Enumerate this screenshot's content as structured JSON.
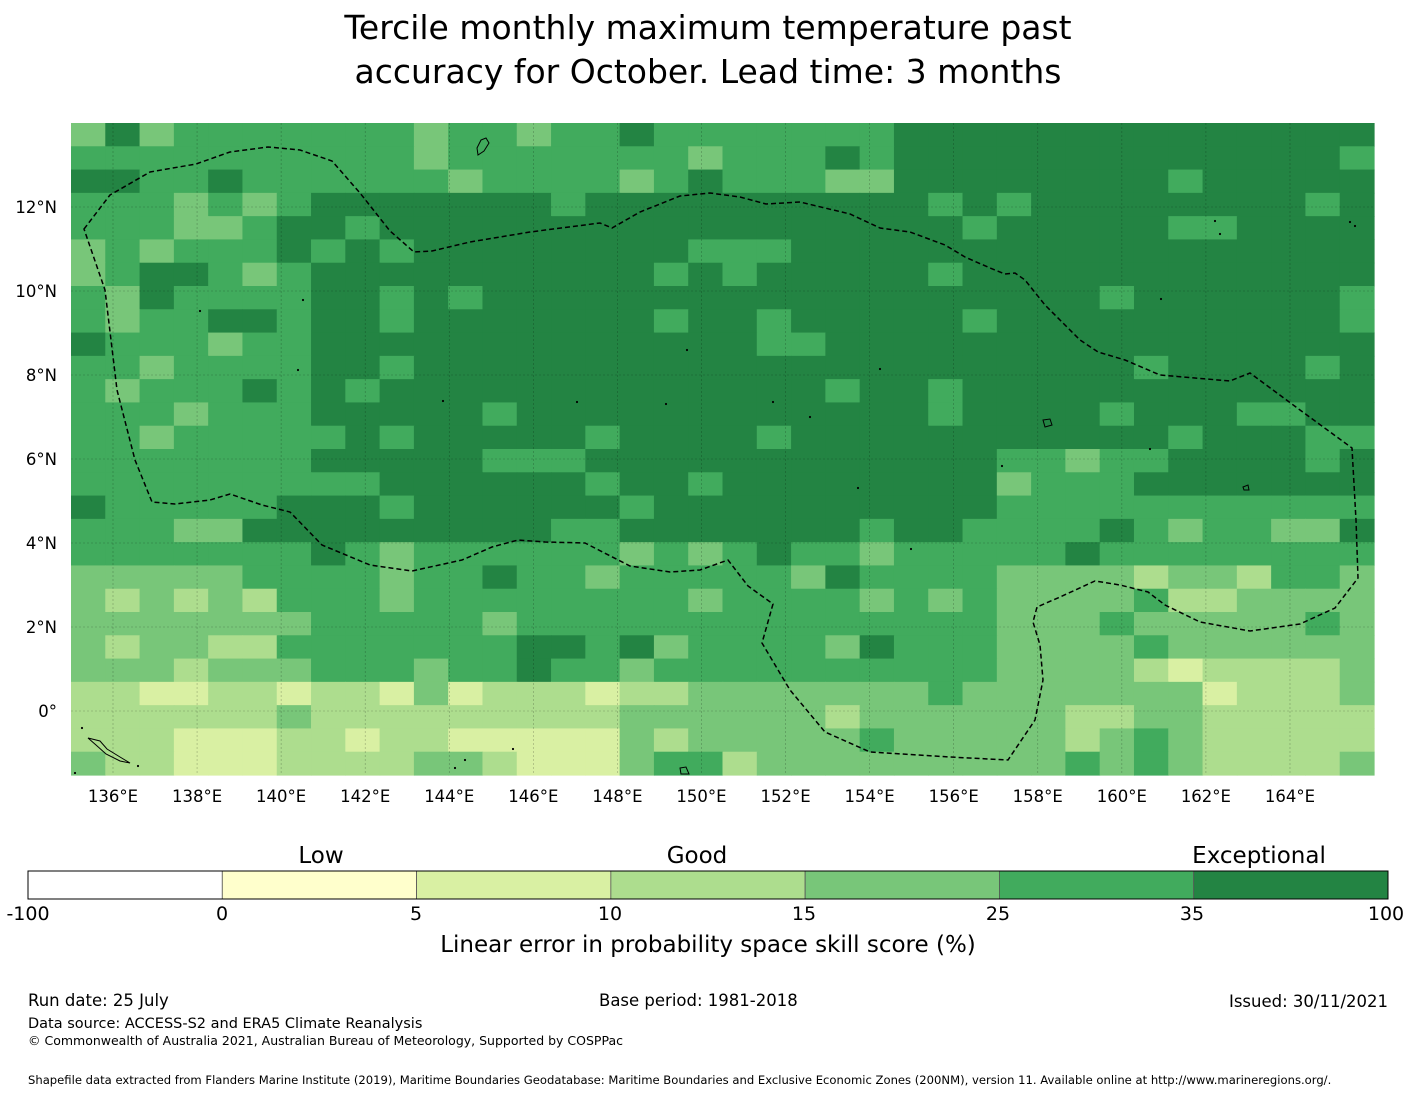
{
  "title_line1": "Tercile monthly maximum temperature past",
  "title_line2": "accuracy for October. Lead time: 3 months",
  "map": {
    "lon_labels": [
      "136°E",
      "138°E",
      "140°E",
      "142°E",
      "144°E",
      "146°E",
      "148°E",
      "150°E",
      "152°E",
      "154°E",
      "156°E",
      "158°E",
      "160°E",
      "162°E",
      "164°E"
    ],
    "lat_labels": [
      "12°N",
      "10°N",
      "8°N",
      "6°N",
      "4°N",
      "2°N",
      "0°"
    ],
    "colors": {
      "class_0": "#ffffcc",
      "class_1": "#d9f0a3",
      "class_2": "#addd8e",
      "class_3": "#78c679",
      "class_4": "#41ab5d",
      "class_5": "#238443"
    }
  },
  "colorbar": {
    "words": [
      "Low",
      "Good",
      "Exceptional"
    ],
    "ticks": [
      "-100",
      "0",
      "5",
      "10",
      "15",
      "25",
      "35",
      "100"
    ],
    "colors": [
      "#ffffff",
      "#ffffcc",
      "#d9f0a3",
      "#addd8e",
      "#78c679",
      "#41ab5d",
      "#238443"
    ],
    "label": "Linear error in probability space skill score (%)"
  },
  "footer": {
    "run_date": "Run date: 25 July",
    "base_period": "Base period: 1981-2018",
    "issued": "Issued: 30/11/2021",
    "data_source": "Data source: ACCESS-S2 and ERA5 Climate Reanalysis",
    "copyright": "© Commonwealth of Australia 2021, Australian Bureau of Meteorology, Supported by COSPPac",
    "shapefile": "Shapefile data extracted from Flanders Marine Institute (2019), Maritime Boundaries Geodatabase: Maritime Boundaries and Exclusive Economic Zones (200NM), version 11. Available online at http://www.marineregions.org/."
  }
}
